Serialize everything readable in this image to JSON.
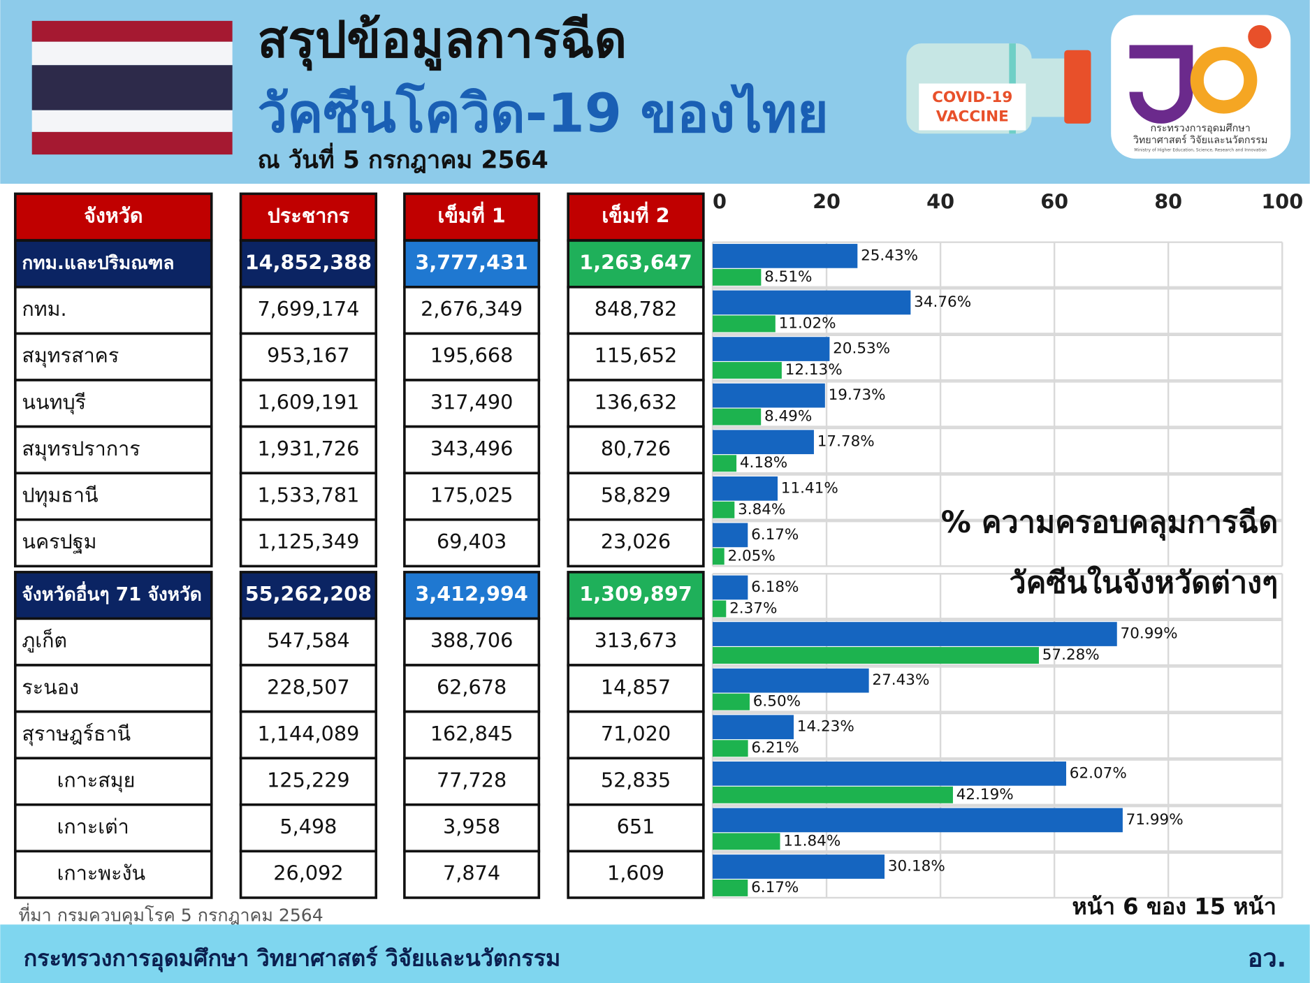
{
  "header": {
    "title": "สรุปข้อมูลการฉีด",
    "subtitle": "วัคซีนโควิด-19 ของไทย",
    "date": "ณ วันที่ 5 กรกฎาคม 2564",
    "vaccine_label": [
      "COVID-19",
      "VACCINE"
    ],
    "logo_text": [
      "กระทรวงการอุดมศึกษา",
      "วิทยาศาสตร์ วิจัยและนวัตกรรม",
      "Ministry of Higher Education, Science, Research and Innovation"
    ]
  },
  "table": {
    "headers": [
      "จังหวัด",
      "ประชากร",
      "เข็มที่ 1",
      "เข็มที่ 2"
    ],
    "groups": [
      {
        "total": [
          "กทม.และปริมณฑล",
          "14,852,388",
          "3,777,431",
          "1,263,647"
        ],
        "rows": [
          {
            "cells": [
              "กทม.",
              "7,699,174",
              "2,676,349",
              "848,782"
            ]
          },
          {
            "cells": [
              "สมุทรสาคร",
              "953,167",
              "195,668",
              "115,652"
            ]
          },
          {
            "cells": [
              "นนทบุรี",
              "1,609,191",
              "317,490",
              "136,632"
            ]
          },
          {
            "cells": [
              "สมุทรปราการ",
              "1,931,726",
              "343,496",
              "80,726"
            ]
          },
          {
            "cells": [
              "ปทุมธานี",
              "1,533,781",
              "175,025",
              "58,829"
            ]
          },
          {
            "cells": [
              "นครปฐม",
              "1,125,349",
              "69,403",
              "23,026"
            ]
          }
        ]
      },
      {
        "total": [
          "จังหวัดอื่นๆ 71 จังหวัด",
          "55,262,208",
          "3,412,994",
          "1,309,897"
        ],
        "rows": [
          {
            "cells": [
              "ภูเก็ต",
              "547,584",
              "388,706",
              "313,673"
            ]
          },
          {
            "cells": [
              "ระนอง",
              "228,507",
              "62,678",
              "14,857"
            ]
          },
          {
            "cells": [
              "สุราษฎร์ธานี",
              "1,144,089",
              "162,845",
              "71,020"
            ],
            "children": [
              {
                "cells": [
                  "เกาะสมุย",
                  "125,229",
                  "77,728",
                  "52,835"
                ]
              },
              {
                "cells": [
                  "เกาะเต่า",
                  "5,498",
                  "3,958",
                  "651"
                ]
              },
              {
                "cells": [
                  "เกาะพะงัน",
                  "26,092",
                  "7,874",
                  "1,609"
                ]
              }
            ]
          }
        ]
      }
    ]
  },
  "chart_data": {
    "type": "bar",
    "orientation": "horizontal",
    "title": "% ความครอบคลุมการฉีด",
    "subtitle": "วัคซีนในจังหวัดต่างๆ",
    "xlim": [
      0,
      100
    ],
    "xticks": [
      0,
      20,
      40,
      60,
      80,
      100
    ],
    "grid": true,
    "series": [
      {
        "color": "#1565c0",
        "values": [
          25.43,
          34.76,
          20.53,
          19.73,
          17.78,
          11.41,
          6.17,
          6.18,
          70.99,
          27.43,
          14.23,
          62.07,
          71.99,
          30.18
        ],
        "value_labels": [
          "25.43%",
          "34.76%",
          "20.53%",
          "19.73%",
          "17.78%",
          "11.41%",
          "6.17%",
          "6.18%",
          "70.99%",
          "27.43%",
          "14.23%",
          "62.07%",
          "71.99%",
          "30.18%"
        ]
      },
      {
        "color": "#1db34f",
        "values": [
          8.51,
          11.02,
          12.13,
          8.49,
          4.18,
          3.84,
          2.05,
          2.37,
          57.28,
          6.5,
          6.21,
          42.19,
          11.84,
          6.17
        ],
        "value_labels": [
          "8.51%",
          "11.02%",
          "12.13%",
          "8.49%",
          "4.18%",
          "3.84%",
          "2.05%",
          "2.37%",
          "57.28%",
          "6.50%",
          "6.21%",
          "42.19%",
          "11.84%",
          "6.17%"
        ]
      }
    ]
  },
  "footer": {
    "source": "ที่มา กรมควบคุมโรค 5 กรกฎาคม 2564",
    "page": "หน้า 6 ของ 15 หน้า",
    "ministry": "กระทรวงการอุดมศึกษา วิทยาศาสตร์ วิจัยและนวัตกรรม",
    "abbr": "อว."
  }
}
